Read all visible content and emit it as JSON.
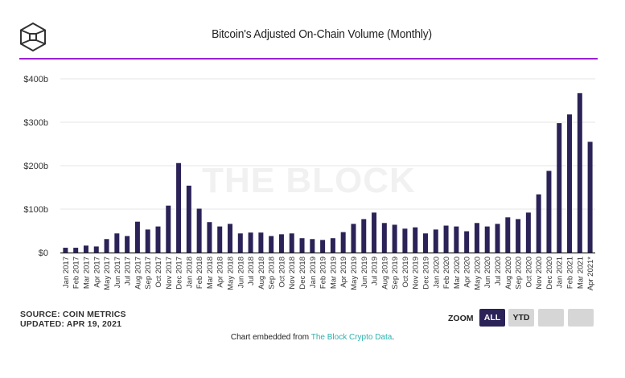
{
  "header": {
    "logo": "the-block-cube-logo",
    "title": "Bitcoin's Adjusted On-Chain Volume (Monthly)"
  },
  "colors": {
    "bar": "#2b2357",
    "rule": "#9b20d6",
    "grid": "#e6e6e6",
    "link": "#2bb1ad",
    "zoom_active": "#2b2357",
    "zoom_inactive": "#d6d6d6"
  },
  "watermark": "THE BLOCK",
  "chart_data": {
    "type": "bar",
    "title": "Bitcoin's Adjusted On-Chain Volume (Monthly)",
    "xlabel": "",
    "ylabel": "",
    "ylim": [
      0,
      400
    ],
    "y_unit": "billion USD",
    "yticks": [
      0,
      100,
      200,
      300,
      400
    ],
    "ytick_labels": [
      "$0",
      "$100b",
      "$200b",
      "$300b",
      "$400b"
    ],
    "grid": true,
    "legend": "none",
    "categories": [
      "Jan 2017",
      "Feb 2017",
      "Mar 2017",
      "Apr 2017",
      "May 2017",
      "Jun 2017",
      "Jul 2017",
      "Aug 2017",
      "Sep 2017",
      "Oct 2017",
      "Nov 2017",
      "Dec 2017",
      "Jan 2018",
      "Feb 2018",
      "Mar 2018",
      "Apr 2018",
      "May 2018",
      "Jun 2018",
      "Jul 2018",
      "Aug 2018",
      "Sep 2018",
      "Oct 2018",
      "Nov 2018",
      "Dec 2018",
      "Jan 2019",
      "Feb 2019",
      "Mar 2019",
      "Apr 2019",
      "May 2019",
      "Jun 2019",
      "Jul 2019",
      "Aug 2019",
      "Sep 2019",
      "Oct 2019",
      "Nov 2019",
      "Dec 2019",
      "Jan 2020",
      "Feb 2020",
      "Mar 2020",
      "Apr 2020",
      "May 2020",
      "Jun 2020",
      "Jul 2020",
      "Aug 2020",
      "Sep 2020",
      "Oct 2020",
      "Nov 2020",
      "Dec 2020",
      "Jan 2021",
      "Feb 2021",
      "Mar 2021",
      "Apr 2021*"
    ],
    "values": [
      11,
      11,
      16,
      14,
      31,
      44,
      38,
      71,
      53,
      60,
      108,
      206,
      154,
      101,
      70,
      60,
      66,
      44,
      46,
      46,
      38,
      42,
      44,
      33,
      31,
      29,
      33,
      47,
      66,
      77,
      92,
      68,
      64,
      55,
      58,
      44,
      53,
      62,
      60,
      49,
      68,
      60,
      66,
      81,
      77,
      92,
      134,
      188,
      298,
      318,
      367,
      255
    ]
  },
  "footer": {
    "source": "SOURCE: COIN METRICS",
    "updated": "UPDATED: APR 19, 2021",
    "zoom_label": "ZOOM",
    "zoom_buttons": [
      "ALL",
      "YTD",
      "",
      ""
    ],
    "embed_prefix": "Chart embedded from ",
    "embed_link": "The Block Crypto Data",
    "embed_suffix": "."
  }
}
